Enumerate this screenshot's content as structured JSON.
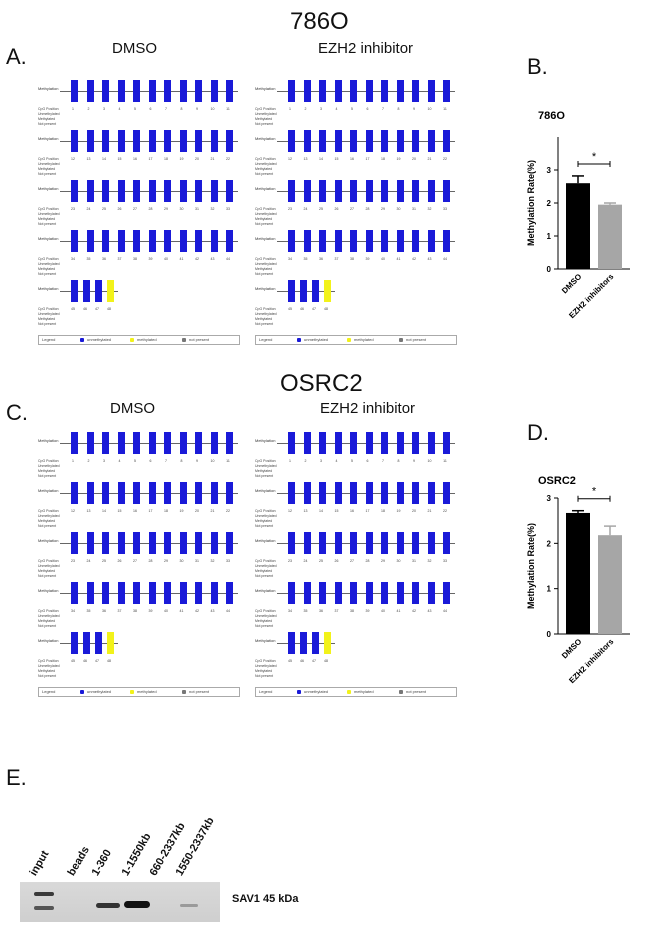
{
  "section_a": {
    "title": "786O",
    "letter": "A.",
    "left_title": "DMSO",
    "right_title": "EZH2 inhibitor"
  },
  "section_c": {
    "title": "OSRC2",
    "letter": "C.",
    "left_title": "DMSO",
    "right_title": "EZH2 inhibitor"
  },
  "panel_b_letter": "B.",
  "panel_d_letter": "D.",
  "panel_e_letter": "E.",
  "lollipop": {
    "methylation_label": "Methylation",
    "row_labels": [
      "CpG Position",
      "Unmethylated",
      "Methylated",
      "Not present"
    ],
    "legend": [
      "Legend",
      "unmethylated",
      "methylated",
      "not present"
    ],
    "rows": [
      [
        "1",
        "2",
        "3",
        "4",
        "5",
        "6",
        "7",
        "8",
        "9",
        "10",
        "11"
      ],
      [
        "12",
        "13",
        "14",
        "15",
        "16",
        "17",
        "18",
        "19",
        "20",
        "21",
        "22"
      ],
      [
        "23",
        "24",
        "25",
        "26",
        "27",
        "28",
        "29",
        "30",
        "31",
        "32",
        "33"
      ],
      [
        "34",
        "35",
        "36",
        "37",
        "38",
        "39",
        "40",
        "41",
        "42",
        "43",
        "44"
      ],
      [
        "45",
        "46",
        "47",
        "48"
      ]
    ]
  },
  "chart_data": [
    {
      "type": "bar",
      "title": "786O",
      "categories": [
        "DMSO",
        "EZH2 inhibitors"
      ],
      "values": [
        2.6,
        1.95
      ],
      "errors": [
        0.22,
        0.05
      ],
      "colors": [
        "#000000",
        "#a6a6a6"
      ],
      "ylabel": "Methylation Rate(%)",
      "ylim": [
        0,
        4
      ],
      "yticks": [
        "0",
        "1",
        "2",
        "3"
      ],
      "significance": "*"
    },
    {
      "type": "bar",
      "title": "OSRC2",
      "categories": [
        "DMSO",
        "EZH2 inhibitors"
      ],
      "values": [
        2.67,
        2.18
      ],
      "errors": [
        0.05,
        0.2
      ],
      "colors": [
        "#000000",
        "#a6a6a6"
      ],
      "ylabel": "Methylation Rate(%)",
      "ylim": [
        0,
        3
      ],
      "yticks": [
        "0",
        "1",
        "2",
        "3"
      ],
      "significance": "*"
    }
  ],
  "western_blot": {
    "lanes": [
      "input",
      "beads",
      "1-360",
      "1-1550kb",
      "660-2337kb",
      "1550-2337kb"
    ],
    "band_label": "SAV1 45 kDa"
  }
}
